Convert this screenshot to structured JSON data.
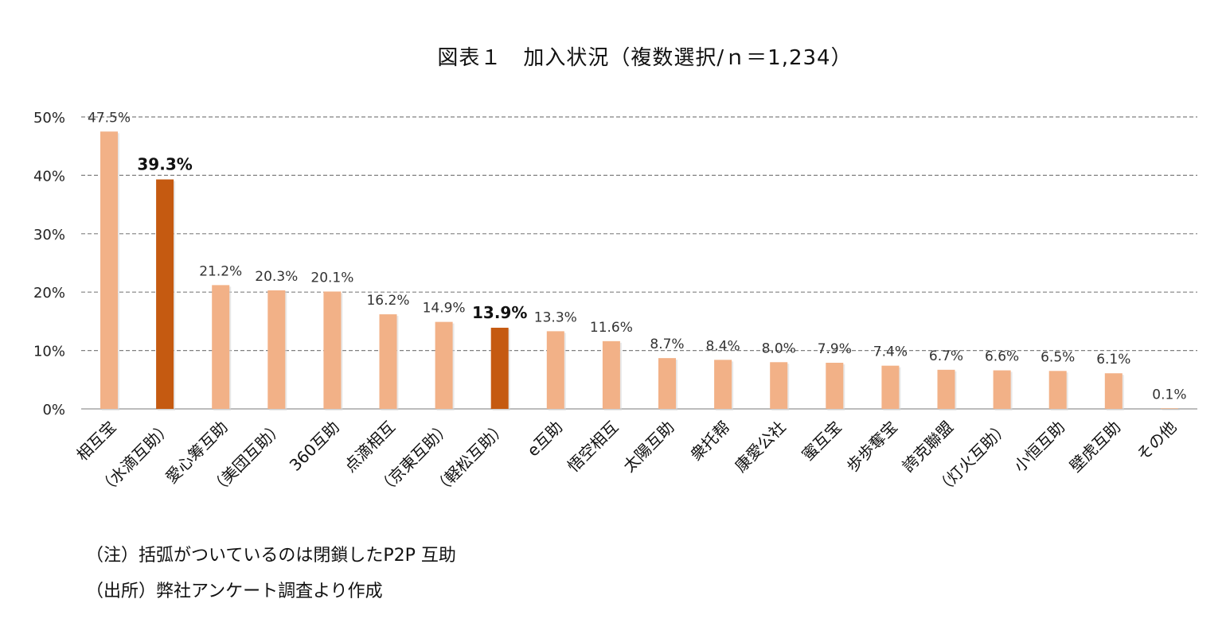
{
  "title": "図表１　加入状況（複数選択/ｎ＝1,234）",
  "notes": {
    "note": "（注）括弧がついているのは閉鎖したP2P 互助",
    "source": "（出所）弊社アンケート調査より作成"
  },
  "colors": {
    "bar": "#f2b187",
    "highlight": "#c55a11",
    "grid": "#808080",
    "axis": "#a6a6a6",
    "text": "#222222"
  },
  "chart_data": {
    "type": "bar",
    "title": "図表１　加入状況（複数選択/ｎ＝1,234）",
    "ylim": [
      0,
      50
    ],
    "yticks": [
      "0%",
      "10%",
      "20%",
      "30%",
      "40%",
      "50%"
    ],
    "grid": true,
    "categories": [
      "相互宝",
      "（水滴互助）",
      "愛心筹互助",
      "（美団互助）",
      "360互助",
      "点滴相互",
      "（京東互助）",
      "（軽松互助）",
      "e互助",
      "悟空相互",
      "太陽互助",
      "衆托帮",
      "康愛公社",
      "蜜互宝",
      "歩歩奪宝",
      "誇克聯盟",
      "（灯火互助）",
      "小恒互助",
      "壁虎互助",
      "その他"
    ],
    "values": [
      47.5,
      39.3,
      21.2,
      20.3,
      20.1,
      16.2,
      14.9,
      13.9,
      13.3,
      11.6,
      8.7,
      8.4,
      8.0,
      7.9,
      7.4,
      6.7,
      6.6,
      6.5,
      6.1,
      0.1
    ],
    "value_labels": [
      "47.5%",
      "39.3%",
      "21.2%",
      "20.3%",
      "20.1%",
      "16.2%",
      "14.9%",
      "13.9%",
      "13.3%",
      "11.6%",
      "8.7%",
      "8.4%",
      "8.0%",
      "7.9%",
      "7.4%",
      "6.7%",
      "6.6%",
      "6.5%",
      "6.1%",
      "0.1%"
    ],
    "highlighted": [
      false,
      true,
      false,
      false,
      false,
      false,
      false,
      true,
      false,
      false,
      false,
      false,
      false,
      false,
      false,
      false,
      false,
      false,
      false,
      false
    ]
  }
}
